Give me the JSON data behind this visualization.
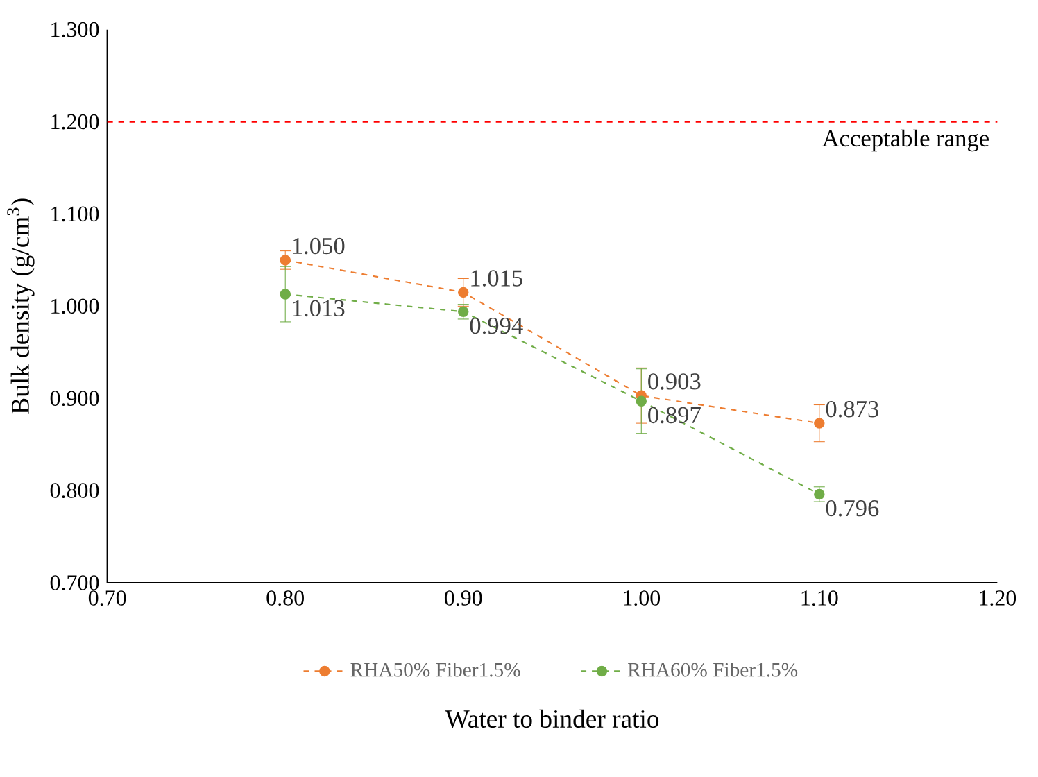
{
  "chart_data": {
    "type": "line",
    "xlabel": "Water to binder ratio",
    "ylabel": "Bulk density (g/cm$^{3}$)",
    "x": [
      0.8,
      0.9,
      1.0,
      1.1
    ],
    "xlim": [
      0.7,
      1.2
    ],
    "ylim": [
      0.7,
      1.3
    ],
    "xticks": [
      {
        "value": 0.7,
        "label": "0.70"
      },
      {
        "value": 0.8,
        "label": "0.80"
      },
      {
        "value": 0.9,
        "label": "0.90"
      },
      {
        "value": 1.0,
        "label": "1.00"
      },
      {
        "value": 1.1,
        "label": "1.10"
      },
      {
        "value": 1.2,
        "label": "1.20"
      }
    ],
    "yticks": [
      {
        "value": 0.7,
        "label": "0.700"
      },
      {
        "value": 0.8,
        "label": "0.800"
      },
      {
        "value": 0.9,
        "label": "0.900"
      },
      {
        "value": 1.0,
        "label": "1.000"
      },
      {
        "value": 1.1,
        "label": "1.100"
      },
      {
        "value": 1.2,
        "label": "1.200"
      },
      {
        "value": 1.3,
        "label": "1.300"
      }
    ],
    "series": [
      {
        "name": "RHA50% Fiber1.5%",
        "color": "#ed7d31",
        "values": [
          1.05,
          1.015,
          0.903,
          0.873
        ],
        "errors": [
          0.01,
          0.015,
          0.03,
          0.02
        ],
        "value_labels": [
          "1.050",
          "1.015",
          "0.903",
          "0.873"
        ]
      },
      {
        "name": "RHA60% Fiber1.5%",
        "color": "#70ad47",
        "values": [
          1.013,
          0.994,
          0.897,
          0.796
        ],
        "errors": [
          0.03,
          0.008,
          0.035,
          0.008
        ],
        "value_labels": [
          "1.013",
          "0.994",
          "0.897",
          "0.796"
        ]
      }
    ],
    "marker": "circle",
    "line_style": "dashed",
    "legend": "bottom",
    "grid": false,
    "ref_lines": [
      {
        "axis": "y",
        "value": 1.2,
        "label": "Acceptable range",
        "color": "#ff0000",
        "line_style": "dashed"
      }
    ]
  }
}
